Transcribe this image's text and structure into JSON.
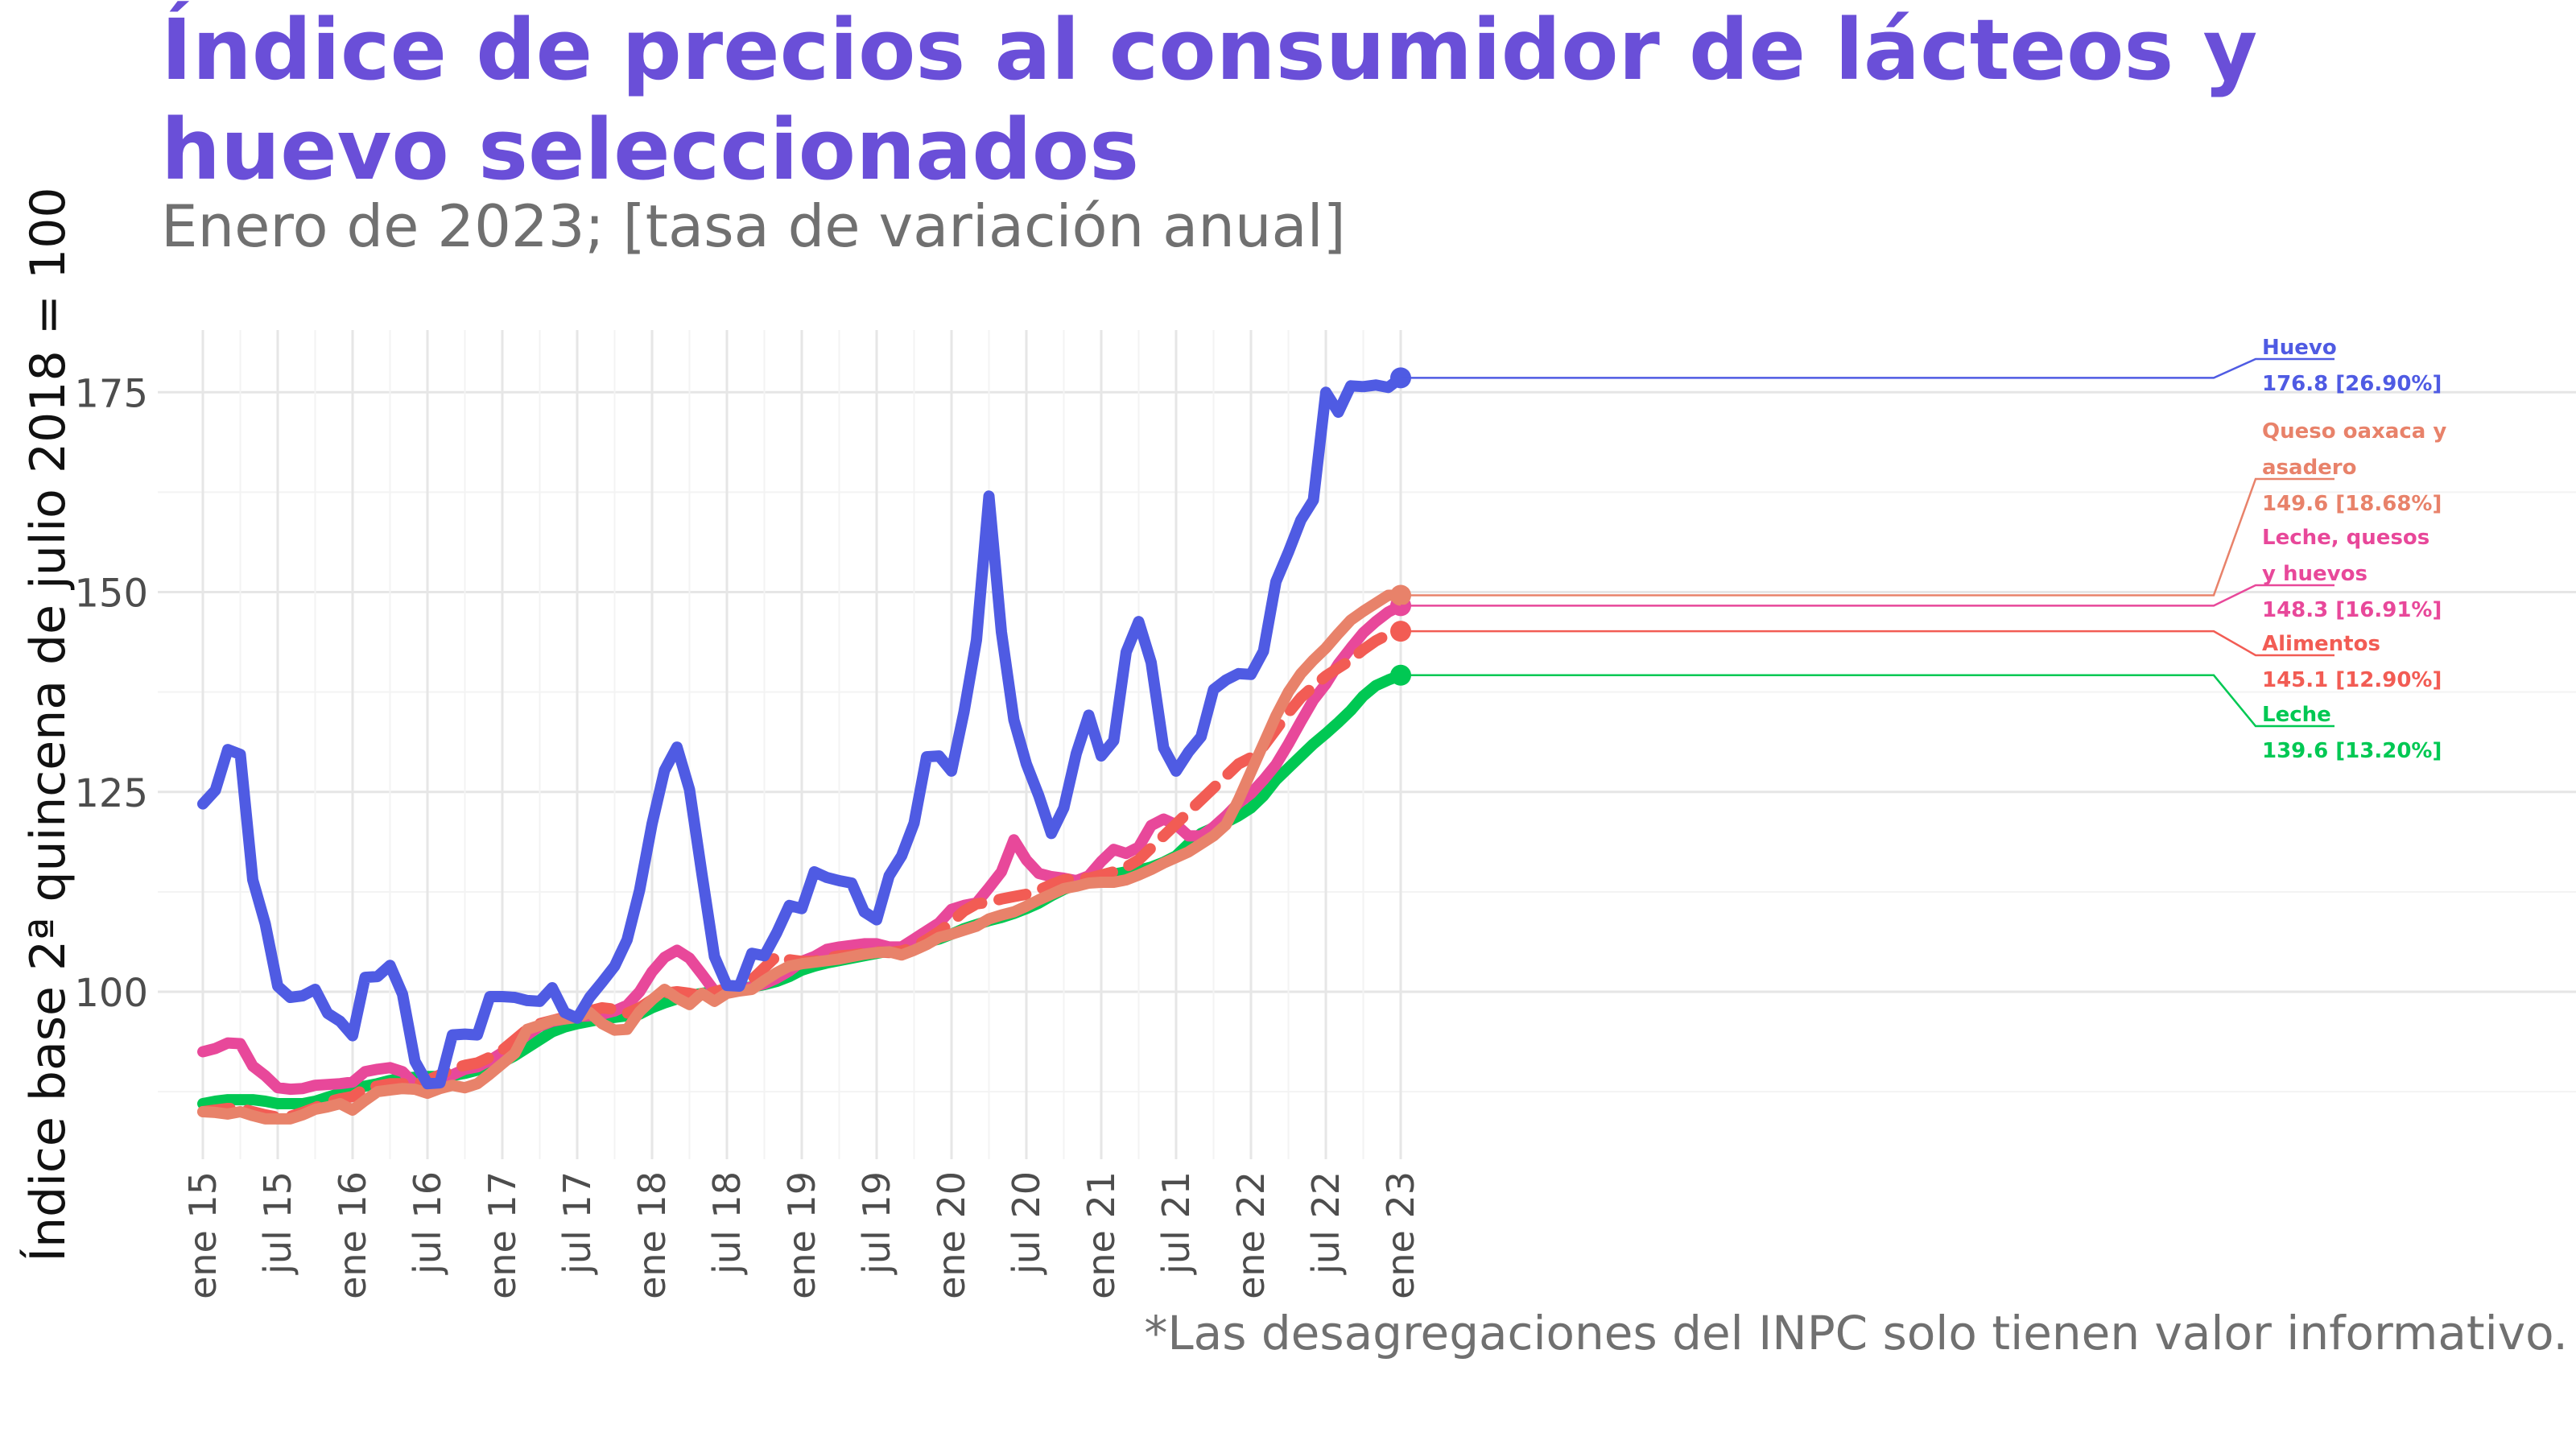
{
  "title": "Índice de precios al consumidor de lácteos y huevo seleccionados",
  "subtitle": "Enero de 2023; [tasa de variación anual]",
  "caption": "*Las desagregaciones del INPC solo tienen valor informativo.",
  "chart_data": {
    "type": "line",
    "ylabel": "Índice base 2ª quincena de julio 2018 = 100",
    "xlabel": "",
    "ylim": [
      82,
      182
    ],
    "yticks": [
      100,
      125,
      150,
      175
    ],
    "grid": true,
    "legend": "none",
    "x_start": "2015-01",
    "x_ticks": [
      "ene 15",
      "jul 15",
      "ene 16",
      "jul 16",
      "ene 17",
      "jul 17",
      "ene 18",
      "jul 18",
      "ene 19",
      "jul 19",
      "ene 20",
      "jul 20",
      "ene 21",
      "jul 21",
      "ene 22",
      "jul 22",
      "ene 23"
    ],
    "series": [
      {
        "name": "Leche",
        "color": "#00C853",
        "dashed": false,
        "end_value": "139.6 [13.20%]",
        "values": [
          86.0,
          86.3,
          86.5,
          86.5,
          86.5,
          86.3,
          86.0,
          86.0,
          86.0,
          86.3,
          86.8,
          87.3,
          87.8,
          88.2,
          88.5,
          88.9,
          89.2,
          89.3,
          89.4,
          89.4,
          89.5,
          89.8,
          90.2,
          90.6,
          91.2,
          92.0,
          93.0,
          94.0,
          95.0,
          95.6,
          96.0,
          96.3,
          96.6,
          96.8,
          97.0,
          97.2,
          98.0,
          98.6,
          99.1,
          99.5,
          99.8,
          100.0,
          100.2,
          100.4,
          100.6,
          100.9,
          101.3,
          101.9,
          102.7,
          103.2,
          103.6,
          103.9,
          104.2,
          104.5,
          104.8,
          105.1,
          105.4,
          105.8,
          106.2,
          106.6,
          107.2,
          107.9,
          108.4,
          108.9,
          109.3,
          109.8,
          110.4,
          111.1,
          112.0,
          112.8,
          113.4,
          114.0,
          114.4,
          114.7,
          115.0,
          115.2,
          115.6,
          116.2,
          117.0,
          118.5,
          119.8,
          120.5,
          121.2,
          122.0,
          123.0,
          124.5,
          126.5,
          128.0,
          129.5,
          131.0,
          132.3,
          133.7,
          135.2,
          137.0,
          138.3,
          139.0,
          139.6
        ]
      },
      {
        "name": "Leche, quesos y huevos",
        "color": "#E8489A",
        "dashed": false,
        "end_value": "148.3 [16.91%]",
        "values": [
          92.5,
          92.9,
          93.6,
          93.5,
          90.7,
          89.5,
          88.0,
          87.8,
          87.9,
          88.3,
          88.4,
          88.5,
          88.7,
          90.0,
          90.3,
          90.5,
          90.0,
          88.4,
          88.2,
          89.0,
          89.6,
          90.3,
          90.6,
          91.4,
          92.4,
          93.4,
          94.6,
          95.7,
          96.3,
          96.6,
          96.9,
          97.0,
          97.2,
          97.6,
          98.3,
          100.0,
          102.5,
          104.3,
          105.2,
          104.2,
          102.2,
          100.1,
          99.9,
          100.2,
          100.6,
          101.0,
          101.7,
          102.6,
          103.8,
          104.4,
          105.3,
          105.6,
          105.8,
          106.0,
          106.0,
          105.6,
          105.6,
          106.6,
          107.6,
          108.6,
          110.3,
          110.8,
          111.1,
          113.0,
          115.0,
          119.0,
          116.5,
          114.8,
          114.4,
          114.2,
          113.9,
          114.5,
          116.3,
          117.8,
          117.3,
          118.1,
          120.8,
          121.6,
          120.9,
          119.5,
          119.5,
          120.6,
          122.0,
          123.6,
          124.8,
          126.5,
          128.4,
          131.0,
          133.8,
          136.5,
          138.5,
          141.0,
          143.0,
          144.9,
          146.3,
          147.5,
          148.3
        ]
      },
      {
        "name": "Alimentos",
        "color": "#F25C54",
        "dashed": true,
        "end_value": "145.1 [12.90%]",
        "values": [
          85.0,
          85.2,
          85.4,
          85.4,
          85.0,
          84.6,
          84.3,
          84.4,
          84.9,
          85.5,
          86.2,
          86.6,
          86.9,
          87.9,
          88.2,
          88.5,
          88.5,
          88.4,
          88.9,
          89.6,
          90.4,
          90.8,
          91.1,
          91.8,
          92.7,
          94.0,
          95.3,
          96.0,
          96.4,
          96.8,
          97.2,
          97.6,
          98.0,
          97.8,
          97.3,
          98.0,
          99.0,
          99.8,
          100.0,
          99.8,
          99.5,
          100.0,
          100.4,
          100.8,
          101.5,
          103.0,
          104.5,
          104.0,
          103.8,
          103.8,
          104.2,
          104.5,
          104.6,
          104.8,
          105.0,
          104.9,
          105.1,
          105.6,
          106.5,
          107.5,
          108.7,
          110.1,
          111.0,
          111.2,
          111.6,
          111.9,
          112.2,
          112.7,
          113.4,
          114.0,
          114.2,
          114.2,
          114.6,
          115.0,
          115.6,
          116.5,
          118.0,
          119.5,
          121.0,
          122.5,
          124.0,
          125.5,
          127.0,
          128.5,
          129.3,
          130.7,
          132.8,
          134.9,
          136.8,
          138.2,
          139.5,
          140.5,
          141.5,
          142.8,
          143.9,
          144.7,
          145.1
        ]
      },
      {
        "name": "Queso oaxaca y asadero",
        "color": "#E8826A",
        "dashed": false,
        "end_value": "149.6 [18.68%]",
        "values": [
          85.0,
          84.9,
          84.7,
          85.0,
          84.5,
          84.1,
          84.1,
          84.1,
          84.6,
          85.3,
          85.6,
          86.0,
          85.2,
          86.4,
          87.5,
          87.7,
          87.9,
          87.8,
          87.3,
          87.9,
          88.3,
          88.0,
          88.5,
          89.7,
          91.0,
          92.3,
          95.3,
          95.8,
          96.4,
          96.6,
          96.8,
          97.4,
          96.0,
          95.2,
          95.3,
          97.5,
          99.0,
          100.3,
          99.2,
          98.4,
          99.8,
          98.8,
          99.8,
          100.1,
          100.3,
          101.4,
          102.4,
          103.2,
          103.5,
          103.7,
          103.9,
          104.1,
          104.4,
          104.7,
          104.9,
          105.0,
          104.6,
          105.2,
          105.9,
          106.8,
          107.2,
          107.7,
          108.2,
          109.1,
          109.6,
          110.0,
          110.7,
          111.5,
          112.2,
          112.9,
          113.2,
          113.6,
          113.7,
          113.7,
          114.0,
          114.6,
          115.3,
          116.1,
          116.8,
          117.5,
          118.5,
          119.5,
          120.9,
          124.0,
          127.5,
          131.0,
          134.5,
          137.5,
          139.8,
          141.5,
          143.0,
          144.8,
          146.5,
          147.6,
          148.6,
          149.6,
          149.6
        ]
      },
      {
        "name": "Huevo",
        "color": "#4F5BE3",
        "dashed": false,
        "end_value": "176.8 [26.90%]",
        "values": [
          123.5,
          125.2,
          130.3,
          129.7,
          114.0,
          108.5,
          100.7,
          99.3,
          99.5,
          100.3,
          97.3,
          96.3,
          94.5,
          101.8,
          101.9,
          103.3,
          99.7,
          91.3,
          88.5,
          88.6,
          94.6,
          94.7,
          94.6,
          99.4,
          99.4,
          99.3,
          98.9,
          98.8,
          100.5,
          97.4,
          96.7,
          99.3,
          101.2,
          103.2,
          106.5,
          112.7,
          121.0,
          127.7,
          130.6,
          125.3,
          114.7,
          104.4,
          100.8,
          100.7,
          104.8,
          104.5,
          107.4,
          110.8,
          110.4,
          115.0,
          114.3,
          113.9,
          113.6,
          110.0,
          109.0,
          114.5,
          117.0,
          121.1,
          129.4,
          129.5,
          127.6,
          135.0,
          144.0,
          162.0,
          145.0,
          134.0,
          128.5,
          124.5,
          119.8,
          123.0,
          129.8,
          134.6,
          129.5,
          131.4,
          142.5,
          146.3,
          141.2,
          130.5,
          127.6,
          130.0,
          131.9,
          137.8,
          139.0,
          139.8,
          139.7,
          142.6,
          151.3,
          155.0,
          159.0,
          161.5,
          175.0,
          172.5,
          175.8,
          175.7,
          175.9,
          175.6,
          176.8
        ]
      }
    ]
  }
}
